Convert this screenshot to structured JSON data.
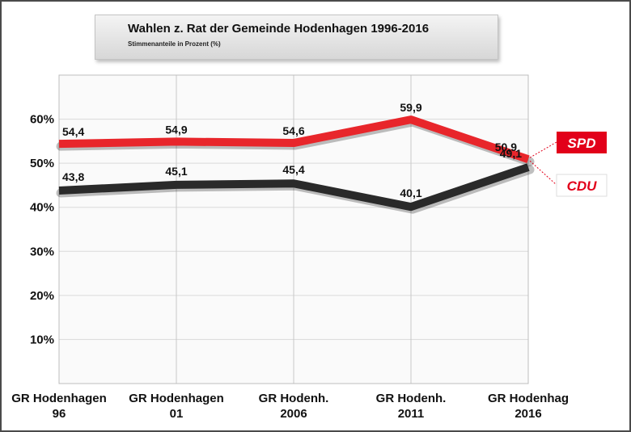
{
  "title": "Wahlen z. Rat der Gemeinde Hodenhagen 1996-2016",
  "subtitle": "Stimmenanteile in Prozent (%)",
  "chart_data": {
    "type": "line",
    "title": "Wahlen z. Rat der Gemeinde Hodenhagen 1996-2016",
    "subtitle": "Stimmenanteile in Prozent (%)",
    "categories": [
      [
        "GR Hodenhagen",
        "96"
      ],
      [
        "GR Hodenhagen",
        "01"
      ],
      [
        "GR Hodenh.",
        "2006"
      ],
      [
        "GR Hodenh.",
        "2011"
      ],
      [
        "GR Hodenhag",
        "2016"
      ]
    ],
    "ylim": [
      0,
      70
    ],
    "yticks": [
      10,
      20,
      30,
      40,
      50,
      60
    ],
    "ytick_labels": [
      "10%",
      "20%",
      "30%",
      "40%",
      "50%",
      "60%"
    ],
    "grid": true,
    "legend": "right",
    "series": [
      {
        "name": "SPD",
        "color": "#e8262b",
        "values": [
          54.4,
          54.9,
          54.6,
          59.9,
          50.9
        ],
        "labels": [
          "54,4",
          "54,9",
          "54,6",
          "59,9",
          "50,9"
        ]
      },
      {
        "name": "CDU",
        "color": "#2a2a2a",
        "values": [
          43.8,
          45.1,
          45.4,
          40.1,
          49.1
        ],
        "labels": [
          "43,8",
          "45,1",
          "45,4",
          "40,1",
          "49,1"
        ]
      }
    ]
  },
  "badges": {
    "spd": {
      "text": "SPD",
      "fill": "#e2001a",
      "text_color": "#ffffff"
    },
    "cdu": {
      "text": "CDU",
      "fill": "#ffffff",
      "text_color": "#e2001a"
    }
  }
}
